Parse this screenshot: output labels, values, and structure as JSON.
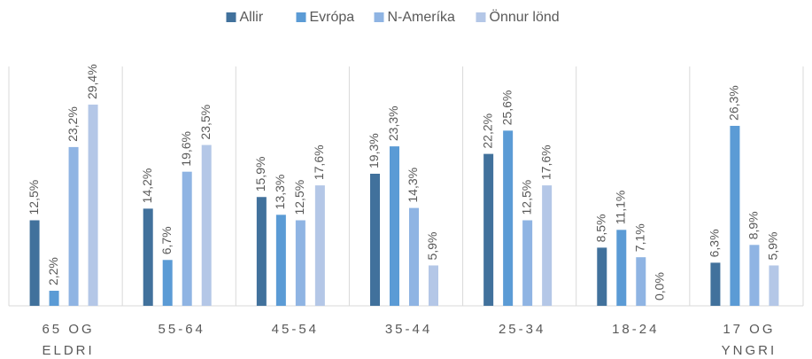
{
  "chart_data": {
    "type": "bar",
    "categories": [
      "65 OG ELDRI",
      "55-64",
      "45-54",
      "35-44",
      "25-34",
      "18-24",
      "17 OG YNGRI"
    ],
    "series": [
      {
        "name": "Allir",
        "color": "#41719c",
        "values": [
          12.5,
          14.2,
          15.9,
          19.3,
          22.2,
          8.5,
          6.3
        ],
        "value_labels": [
          "12,5%",
          "14,2%",
          "15,9%",
          "19,3%",
          "22,2%",
          "8,5%",
          "6,3%"
        ]
      },
      {
        "name": "Evrópa",
        "color": "#5b9bd5",
        "values": [
          2.2,
          6.7,
          13.3,
          23.3,
          25.6,
          11.1,
          26.3
        ],
        "value_labels": [
          "2,2%",
          "6,7%",
          "13,3%",
          "23,3%",
          "25,6%",
          "11,1%",
          "26,3%"
        ]
      },
      {
        "name": "N-Ameríka",
        "color": "#8fb4e3",
        "values": [
          23.2,
          19.6,
          12.5,
          14.3,
          12.5,
          7.1,
          8.9
        ],
        "value_labels": [
          "23,2%",
          "19,6%",
          "12,5%",
          "14,3%",
          "12,5%",
          "7,1%",
          "8,9%"
        ]
      },
      {
        "name": "Önnur lönd",
        "color": "#b4c7e7",
        "values": [
          29.4,
          23.5,
          17.6,
          5.9,
          17.6,
          0.0,
          5.9
        ],
        "value_labels": [
          "29,4%",
          "23,5%",
          "17,6%",
          "5,9%",
          "17,6%",
          "0,0%",
          "5,9%"
        ]
      }
    ],
    "legend": "top"
  }
}
